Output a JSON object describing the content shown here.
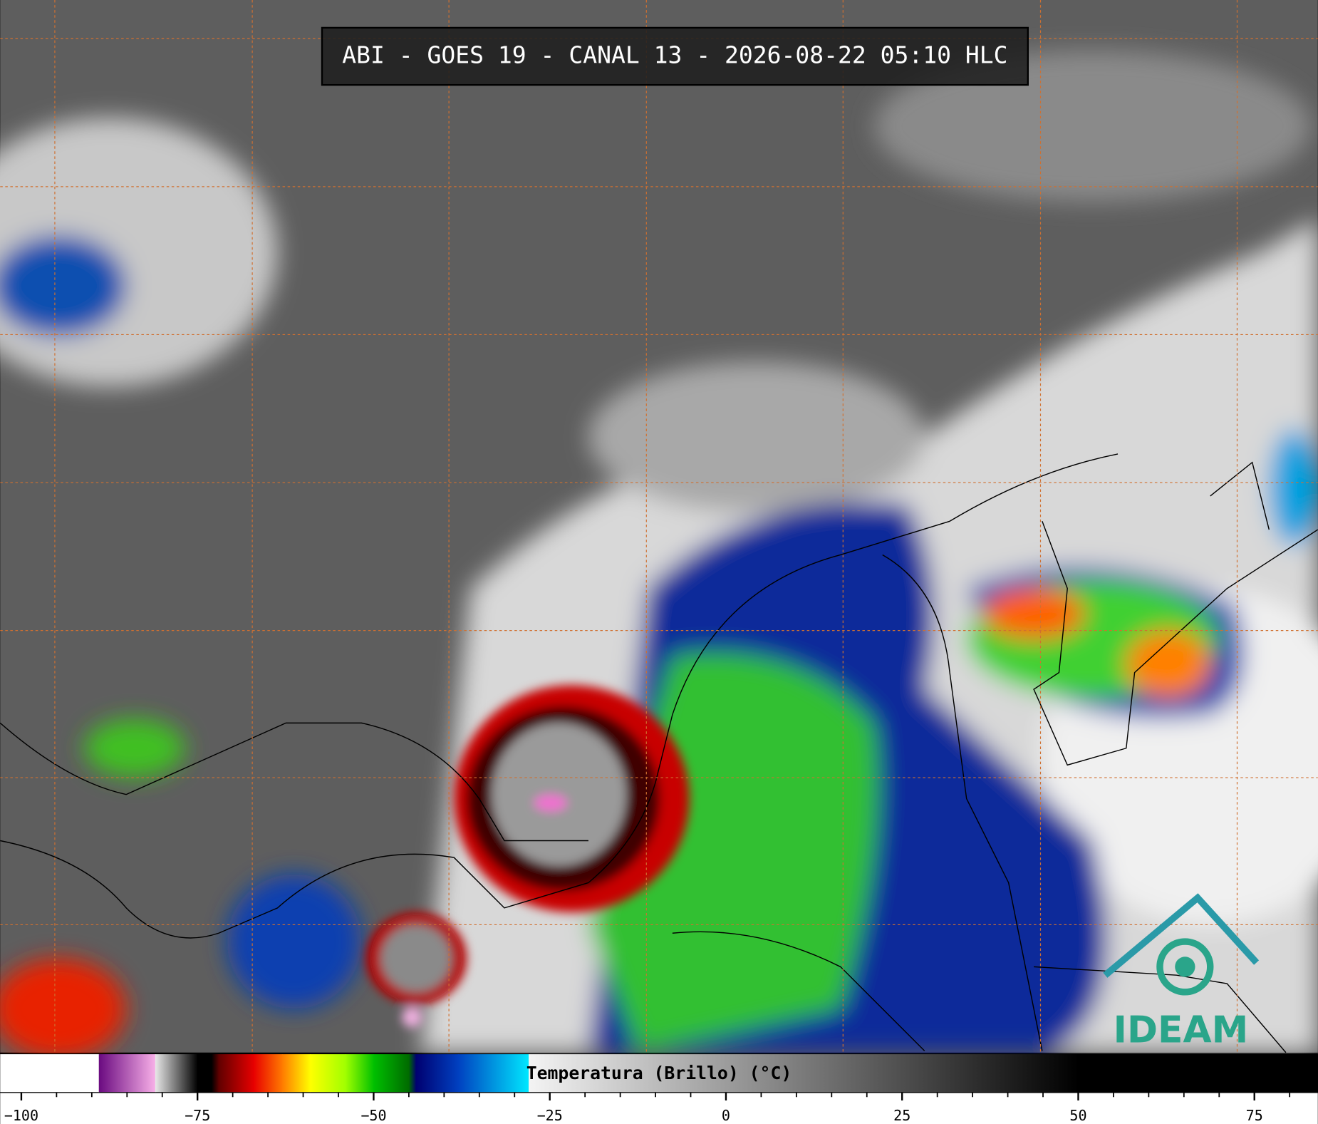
{
  "header": {
    "title": "ABI - GOES 19 - CANAL 13 - 2026-08-22 05:10 HLC"
  },
  "logo": {
    "text": "IDEAM"
  },
  "colorbar": {
    "label": "Temperatura (Brillo) (°C)",
    "lim": [
      -103,
      84
    ],
    "ticks": [
      {
        "value": -100,
        "label": "−100"
      },
      {
        "value": -75,
        "label": "−75"
      },
      {
        "value": -50,
        "label": "−50"
      },
      {
        "value": -25,
        "label": "−25"
      },
      0,
      25,
      50,
      75
    ],
    "minor_ticks": [
      -95,
      -90,
      -85,
      -80,
      -70,
      -65,
      -60,
      -55,
      -45,
      -40,
      -35,
      -30,
      -20,
      -15,
      -10,
      -5,
      5,
      10,
      15,
      20,
      30,
      35,
      40,
      45,
      55,
      60,
      65,
      70,
      80
    ],
    "colormap": [
      {
        "value": -103,
        "color": "#ffffff"
      },
      {
        "value": -89,
        "color": "#ffffff"
      },
      {
        "value": -89,
        "color": "#6a0a80"
      },
      {
        "value": -81,
        "color": "#f8b0e8"
      },
      {
        "value": -81,
        "color": "#e8e8e8"
      },
      {
        "value": -75,
        "color": "#000000"
      },
      {
        "value": -73,
        "color": "#000000"
      },
      {
        "value": -72,
        "color": "#600000"
      },
      {
        "value": -67,
        "color": "#e80000"
      },
      {
        "value": -63,
        "color": "#ff7a00"
      },
      {
        "value": -59,
        "color": "#ffff00"
      },
      {
        "value": -54,
        "color": "#a0ff00"
      },
      {
        "value": -50,
        "color": "#00c000"
      },
      {
        "value": -45,
        "color": "#006a00"
      },
      {
        "value": -44,
        "color": "#000070"
      },
      {
        "value": -38,
        "color": "#0040c0"
      },
      {
        "value": -28,
        "color": "#00e8ff"
      },
      {
        "value": -28,
        "color": "#f4f4f4"
      },
      {
        "value": 50,
        "color": "#000000"
      },
      {
        "value": 84,
        "color": "#000000"
      }
    ]
  }
}
